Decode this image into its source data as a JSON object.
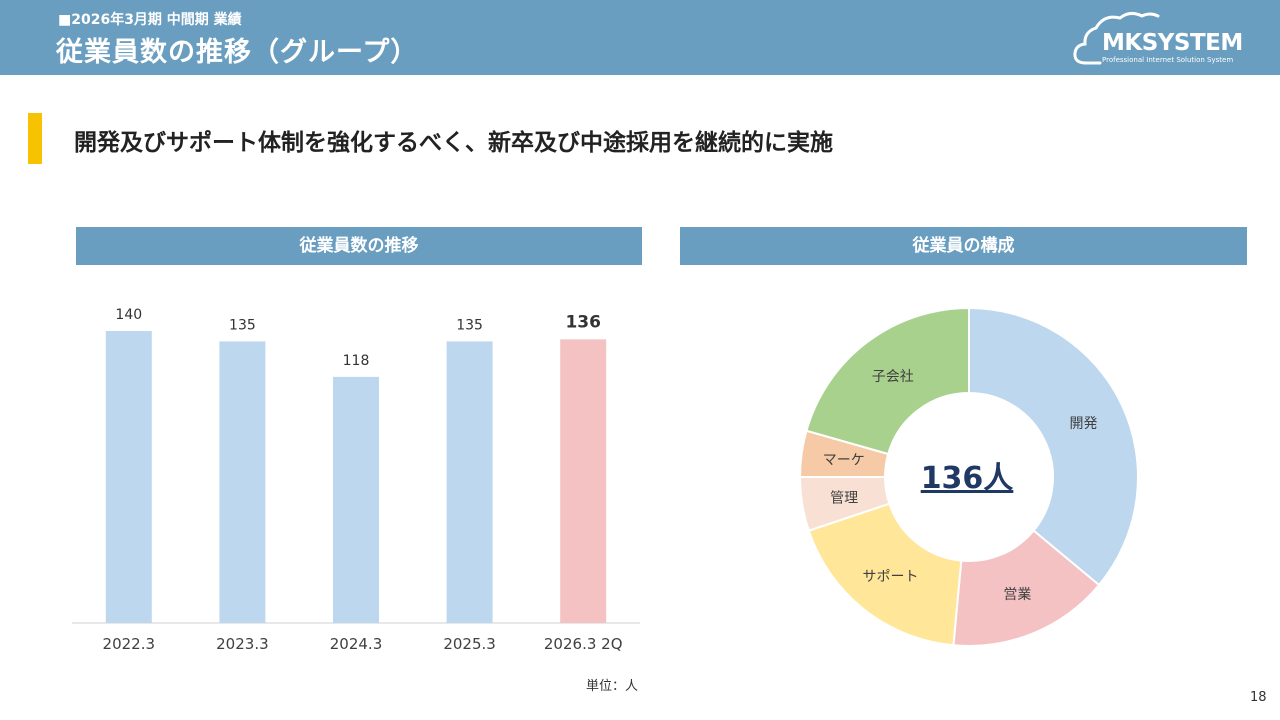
{
  "header": {
    "subtitle": "■2026年3月期 中間期 業績",
    "title": "従業員数の推移（グループ）",
    "logo_text": "MKSYSTEM",
    "logo_tagline": "Professional Internet Solution System"
  },
  "headline": "開発及びサポート体制を強化するべく、新卒及び中途採用を継続的に実施",
  "left_panel": {
    "title": "従業員数の推移",
    "unit": "単位：人"
  },
  "right_panel": {
    "title": "従業員の構成",
    "center_label": "136人"
  },
  "page_number": "18",
  "colors": {
    "header": "#6a9ec0",
    "accent": "#f7c300",
    "bar_default": "#bdd7ee",
    "bar_highlight": "#f4c2c2",
    "center_text": "#1f3864"
  },
  "chart_data": [
    {
      "type": "bar",
      "title": "従業員数の推移",
      "categories": [
        "2022.3",
        "2023.3",
        "2024.3",
        "2025.3",
        "2026.3 2Q"
      ],
      "values": [
        140,
        135,
        118,
        135,
        136
      ],
      "value_labels": [
        "140",
        "135",
        "118",
        "135",
        "136"
      ],
      "highlight_index": 4,
      "ylim": [
        0,
        150
      ],
      "unit": "人"
    },
    {
      "type": "pie",
      "variant": "donut",
      "title": "従業員の構成",
      "total": 136,
      "center_label": "136人",
      "slices": [
        {
          "label": "開発",
          "value": 49,
          "color": "#bdd7ee"
        },
        {
          "label": "営業",
          "value": 21,
          "color": "#f4c2c2"
        },
        {
          "label": "サポート",
          "value": 25,
          "color": "#ffe699"
        },
        {
          "label": "管理",
          "value": 7,
          "color": "#f8e1d4"
        },
        {
          "label": "マーケ",
          "value": 6,
          "color": "#f6caa6"
        },
        {
          "label": "子会社",
          "value": 28,
          "color": "#a9d18e"
        }
      ]
    }
  ]
}
